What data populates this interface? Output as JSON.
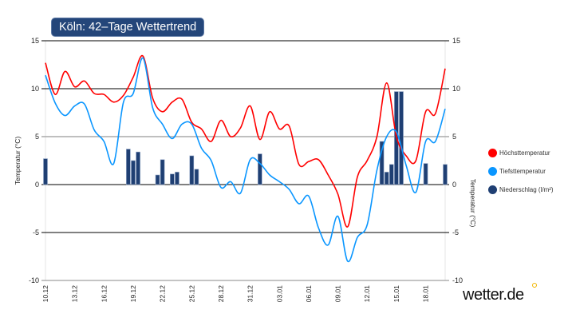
{
  "title": "Köln: 42–Tage Wettertrend",
  "logo": "wetter.de",
  "chart_data": {
    "type": "line",
    "ylabel_left": "Temperatur (°C)",
    "ylabel_right": "Temperatur (°C)",
    "ylim": [
      -10,
      15
    ],
    "yticks": [
      "-10",
      "-5",
      "0",
      "5",
      "10",
      "15"
    ],
    "xticks": [
      "10.12",
      "13.12",
      "16.12",
      "19.12",
      "22.12",
      "25.12",
      "28.12",
      "31.12",
      "03.01",
      "06.01",
      "09.01",
      "12.01",
      "15.01",
      "18.01"
    ],
    "legend_position": "right",
    "dates": [
      "10.12",
      "11.12",
      "12.12",
      "13.12",
      "14.12",
      "15.12",
      "16.12",
      "17.12",
      "18.12",
      "19.12",
      "20.12",
      "21.12",
      "22.12",
      "23.12",
      "24.12",
      "25.12",
      "26.12",
      "27.12",
      "28.12",
      "29.12",
      "30.12",
      "31.12",
      "01.01",
      "02.01",
      "03.01",
      "04.01",
      "05.01",
      "06.01",
      "07.01",
      "08.01",
      "09.01",
      "10.01",
      "11.01",
      "12.01",
      "13.01",
      "14.01",
      "15.01",
      "16.01",
      "17.01",
      "18.01",
      "19.01",
      "20.01"
    ],
    "series": [
      {
        "name": "Höchsttemperatur",
        "color": "#ff0000",
        "kind": "line",
        "values": [
          12.7,
          9.4,
          11.8,
          10.2,
          10.8,
          9.5,
          9.4,
          8.6,
          9.3,
          11.2,
          13.4,
          9.0,
          7.6,
          8.6,
          8.9,
          6.5,
          5.8,
          4.5,
          6.7,
          5.0,
          5.9,
          8.2,
          4.7,
          7.6,
          5.8,
          6.1,
          2.1,
          2.4,
          2.6,
          1.0,
          -1.0,
          -4.4,
          0.8,
          2.5,
          5.0,
          10.6,
          5.0,
          3.0,
          2.5,
          7.6,
          7.4,
          12.1
        ]
      },
      {
        "name": "Tiefsttemperatur",
        "color": "#0a96ff",
        "kind": "line",
        "values": [
          11.4,
          8.5,
          7.2,
          8.2,
          8.4,
          5.7,
          4.5,
          2.2,
          8.6,
          9.5,
          13.2,
          8.0,
          6.3,
          4.8,
          6.3,
          6.3,
          3.8,
          2.5,
          -0.3,
          0.3,
          -0.9,
          2.6,
          2.2,
          1.0,
          0.3,
          -0.5,
          -2.0,
          -1.2,
          -4.5,
          -6.3,
          -3.3,
          -8.0,
          -5.5,
          -4.2,
          1.5,
          5.0,
          5.5,
          2.0,
          -0.8,
          4.5,
          4.5,
          7.9
        ]
      },
      {
        "name": "Niederschlag (l/m²)",
        "color": "#1f3f73",
        "kind": "bar",
        "points": [
          {
            "date": "10.12 00:00",
            "value": 2.7
          },
          {
            "date": "18.12 12:00",
            "value": 3.7
          },
          {
            "date": "19.12 00:00",
            "value": 2.5
          },
          {
            "date": "19.12 12:00",
            "value": 3.4
          },
          {
            "date": "21.12 12:00",
            "value": 1.0
          },
          {
            "date": "22.12 00:00",
            "value": 2.6
          },
          {
            "date": "23.12 00:00",
            "value": 1.1
          },
          {
            "date": "23.12 12:00",
            "value": 1.3
          },
          {
            "date": "25.12 00:00",
            "value": 3.0
          },
          {
            "date": "25.12 12:00",
            "value": 1.6
          },
          {
            "date": "01.01 00:00",
            "value": 3.2
          },
          {
            "date": "13.01 12:00",
            "value": 4.5
          },
          {
            "date": "14.01 00:00",
            "value": 1.3
          },
          {
            "date": "14.01 12:00",
            "value": 2.1
          },
          {
            "date": "15.01 00:00",
            "value": 9.7
          },
          {
            "date": "15.01 12:00",
            "value": 9.7
          },
          {
            "date": "18.01 00:00",
            "value": 2.2
          },
          {
            "date": "20.01 00:00",
            "value": 2.1
          }
        ]
      }
    ]
  }
}
